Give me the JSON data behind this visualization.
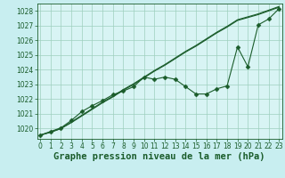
{
  "title": "Graphe pression niveau de la mer (hPa)",
  "bg_color": "#c8eef0",
  "plot_bg_color": "#d8f4f4",
  "grid_color": "#9ecfbe",
  "line_color": "#1a5c2a",
  "xlim": [
    -0.3,
    23.3
  ],
  "ylim": [
    1019.3,
    1028.5
  ],
  "yticks": [
    1020,
    1021,
    1022,
    1023,
    1024,
    1025,
    1026,
    1027,
    1028
  ],
  "xticks": [
    0,
    1,
    2,
    3,
    4,
    5,
    6,
    7,
    8,
    9,
    10,
    11,
    12,
    13,
    14,
    15,
    16,
    17,
    18,
    19,
    20,
    21,
    22,
    23
  ],
  "series": [
    [
      1019.55,
      1019.75,
      1020.0,
      1020.4,
      1020.85,
      1021.3,
      1021.75,
      1022.15,
      1022.6,
      1023.0,
      1023.45,
      1023.9,
      1024.3,
      1024.75,
      1025.2,
      1025.6,
      1026.05,
      1026.5,
      1026.9,
      1027.35,
      1027.55,
      1027.75,
      1028.0,
      1028.25
    ],
    [
      1019.55,
      1019.75,
      1020.0,
      1020.45,
      1020.9,
      1021.35,
      1021.8,
      1022.2,
      1022.65,
      1023.05,
      1023.5,
      1023.95,
      1024.35,
      1024.8,
      1025.25,
      1025.65,
      1026.1,
      1026.55,
      1026.95,
      1027.4,
      1027.6,
      1027.8,
      1028.05,
      1028.3
    ],
    [
      1019.55,
      1019.8,
      1020.05,
      1020.55,
      1021.15,
      1021.55,
      1021.9,
      1022.3,
      1022.55,
      1022.85,
      1023.5,
      1023.35,
      1023.5,
      1023.35,
      1022.85,
      1022.35,
      1022.35,
      1022.7,
      1022.9,
      1025.55,
      1024.2,
      1027.05,
      1027.45,
      1028.15
    ]
  ],
  "marker_series": 2,
  "marker_style": "D",
  "marker_size": 2.5,
  "title_fontsize": 7.5,
  "tick_fontsize": 5.5,
  "linewidth": 0.8
}
